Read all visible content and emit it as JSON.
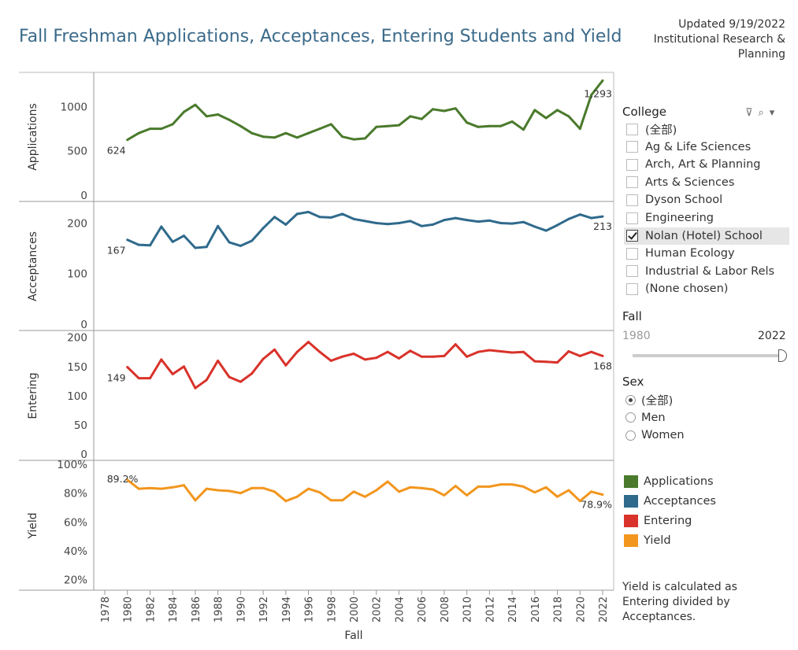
{
  "header": {
    "title": "Fall Freshman Applications, Acceptances, Entering Students and Yield",
    "updated": "Updated 9/19/2022",
    "org_line1": "Institutional Research &",
    "org_line2": "Planning"
  },
  "filters": {
    "college": {
      "label": "College",
      "options": [
        {
          "label": "(全部)",
          "checked": false
        },
        {
          "label": "Ag & Life Sciences",
          "checked": false
        },
        {
          "label": "Arch, Art & Planning",
          "checked": false
        },
        {
          "label": "Arts & Sciences",
          "checked": false
        },
        {
          "label": "Dyson School",
          "checked": false
        },
        {
          "label": "Engineering",
          "checked": false
        },
        {
          "label": "Nolan (Hotel) School",
          "checked": true
        },
        {
          "label": "Human Ecology",
          "checked": false
        },
        {
          "label": "Industrial & Labor Rels",
          "checked": false
        },
        {
          "label": "(None chosen)",
          "checked": false
        }
      ]
    },
    "fall": {
      "label": "Fall",
      "min": "1980",
      "max": "2022"
    },
    "sex": {
      "label": "Sex",
      "options": [
        {
          "label": "(全部)",
          "selected": true
        },
        {
          "label": "Men",
          "selected": false
        },
        {
          "label": "Women",
          "selected": false
        }
      ]
    }
  },
  "legend": [
    {
      "label": "Applications",
      "color": "#4a7a2c"
    },
    {
      "label": "Acceptances",
      "color": "#2f6a8c"
    },
    {
      "label": "Entering",
      "color": "#d9322a"
    },
    {
      "label": "Yield",
      "color": "#f2961e"
    }
  ],
  "note": [
    "Yield is calculated as",
    "Entering divided by",
    "Acceptances."
  ],
  "chart_data": {
    "type": "line",
    "title": "Fall Freshman Applications, Acceptances, Entering Students and Yield",
    "xlabel": "Fall",
    "x_ticks": [
      "1978",
      "1980",
      "1982",
      "1984",
      "1986",
      "1988",
      "1990",
      "1992",
      "1994",
      "1996",
      "1998",
      "2000",
      "2002",
      "2004",
      "2006",
      "2008",
      "2010",
      "2012",
      "2014",
      "2016",
      "2018",
      "2020",
      "2022"
    ],
    "x": [
      1980,
      1981,
      1982,
      1983,
      1984,
      1985,
      1986,
      1987,
      1988,
      1989,
      1990,
      1991,
      1992,
      1993,
      1994,
      1995,
      1996,
      1997,
      1998,
      1999,
      2000,
      2001,
      2002,
      2003,
      2004,
      2005,
      2006,
      2007,
      2008,
      2009,
      2010,
      2011,
      2012,
      2013,
      2014,
      2015,
      2016,
      2017,
      2018,
      2019,
      2020,
      2021,
      2022
    ],
    "xlim": [
      1978,
      2022
    ],
    "panels": [
      {
        "name": "Applications",
        "ylabel": "Applications",
        "color": "#4a7a2c",
        "ylim": [
          0,
          1350
        ],
        "ticks": [
          0,
          500,
          1000
        ],
        "tick_labels": [
          "0",
          "500",
          "1000"
        ],
        "first_label": "624",
        "last_label": "1,293",
        "values": [
          624,
          700,
          750,
          750,
          800,
          940,
          1020,
          890,
          910,
          850,
          780,
          700,
          660,
          650,
          700,
          650,
          700,
          750,
          800,
          660,
          630,
          640,
          770,
          780,
          790,
          890,
          860,
          970,
          950,
          980,
          820,
          770,
          780,
          780,
          830,
          740,
          960,
          870,
          960,
          890,
          750,
          1130,
          1293
        ]
      },
      {
        "name": "Acceptances",
        "ylabel": "Acceptances",
        "color": "#2f6a8c",
        "ylim": [
          0,
          235
        ],
        "ticks": [
          0,
          100,
          200
        ],
        "tick_labels": [
          "0",
          "100",
          "200"
        ],
        "first_label": "167",
        "last_label": "213",
        "values": [
          167,
          157,
          156,
          193,
          163,
          175,
          151,
          153,
          194,
          162,
          155,
          165,
          190,
          212,
          197,
          218,
          222,
          212,
          211,
          218,
          208,
          204,
          200,
          198,
          200,
          204,
          194,
          197,
          206,
          210,
          206,
          203,
          205,
          200,
          199,
          202,
          193,
          185,
          196,
          208,
          217,
          210,
          213
        ]
      },
      {
        "name": "Entering",
        "ylabel": "Entering",
        "color": "#d9322a",
        "ylim": [
          0,
          205
        ],
        "ticks": [
          0,
          50,
          100,
          150,
          200
        ],
        "tick_labels": [
          "0",
          "50",
          "100",
          "150",
          "200"
        ],
        "first_label": "149",
        "last_label": "168",
        "values": [
          149,
          130,
          130,
          162,
          137,
          150,
          113,
          127,
          160,
          132,
          124,
          138,
          163,
          179,
          152,
          175,
          192,
          175,
          160,
          167,
          172,
          162,
          165,
          175,
          164,
          177,
          167,
          167,
          168,
          188,
          167,
          175,
          178,
          176,
          174,
          175,
          159,
          158,
          157,
          176,
          168,
          175,
          168
        ]
      },
      {
        "name": "Yield",
        "ylabel": "Yield",
        "color": "#f2961e",
        "ylim": [
          0.17,
          1.0
        ],
        "ticks": [
          0.2,
          0.4,
          0.6,
          0.8,
          1.0
        ],
        "tick_labels": [
          "20%",
          "40%",
          "60%",
          "80%",
          "100%"
        ],
        "first_label": "89.2%",
        "last_label": "78.9%",
        "values": [
          0.892,
          0.83,
          0.835,
          0.83,
          0.84,
          0.855,
          0.75,
          0.83,
          0.82,
          0.815,
          0.8,
          0.835,
          0.835,
          0.81,
          0.745,
          0.775,
          0.83,
          0.805,
          0.75,
          0.75,
          0.81,
          0.775,
          0.82,
          0.88,
          0.81,
          0.84,
          0.835,
          0.825,
          0.785,
          0.85,
          0.785,
          0.845,
          0.845,
          0.86,
          0.86,
          0.845,
          0.805,
          0.84,
          0.775,
          0.82,
          0.745,
          0.81,
          0.789
        ]
      }
    ]
  }
}
